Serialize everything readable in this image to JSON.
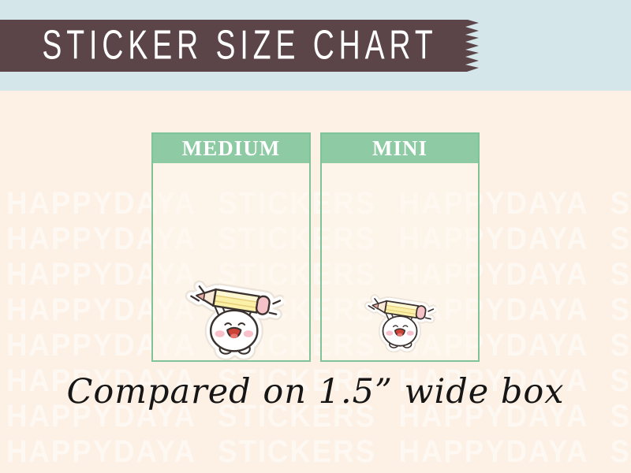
{
  "banner": {
    "title": "STICKER SIZE CHART",
    "bg_color": "#5b4548",
    "text_color": "#ffffff",
    "strip_color": "#d4e6e9"
  },
  "background": {
    "color": "#fdf0e4",
    "watermark_text": "HAPPYDAYA STICKERS",
    "watermark_rows": 8,
    "watermark_color": "rgba(255,255,255,0.52)"
  },
  "chart": {
    "header_color": "#8ecaa3",
    "border_color": "#7fc398",
    "boxes": [
      {
        "label": "MEDIUM",
        "sticker": "pencil-character-sticker",
        "size": "medium"
      },
      {
        "label": "MINI",
        "sticker": "pencil-character-sticker",
        "size": "mini"
      }
    ]
  },
  "caption": {
    "text": "Compared on 1.5” wide box"
  }
}
